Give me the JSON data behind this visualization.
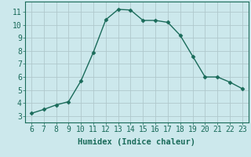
{
  "x": [
    6,
    7,
    8,
    9,
    10,
    11,
    12,
    13,
    14,
    15,
    16,
    17,
    18,
    19,
    20,
    21,
    22,
    23
  ],
  "y": [
    3.2,
    3.5,
    3.85,
    4.1,
    5.7,
    7.9,
    10.4,
    11.2,
    11.15,
    10.35,
    10.35,
    10.2,
    9.2,
    7.6,
    6.0,
    6.0,
    5.6,
    5.1
  ],
  "xlim": [
    5.5,
    23.5
  ],
  "ylim": [
    2.5,
    11.8
  ],
  "xticks": [
    6,
    7,
    8,
    9,
    10,
    11,
    12,
    13,
    14,
    15,
    16,
    17,
    18,
    19,
    20,
    21,
    22,
    23
  ],
  "yticks": [
    3,
    4,
    5,
    6,
    7,
    8,
    9,
    10,
    11
  ],
  "xlabel": "Humidex (Indice chaleur)",
  "line_color": "#1a6b5a",
  "marker": "D",
  "marker_size": 2.5,
  "bg_color": "#cce8ec",
  "grid_color": "#b0c8cc",
  "label_color": "#1a6b5a",
  "tick_color": "#1a6b5a",
  "xlabel_fontsize": 7.5,
  "tick_fontsize": 7
}
